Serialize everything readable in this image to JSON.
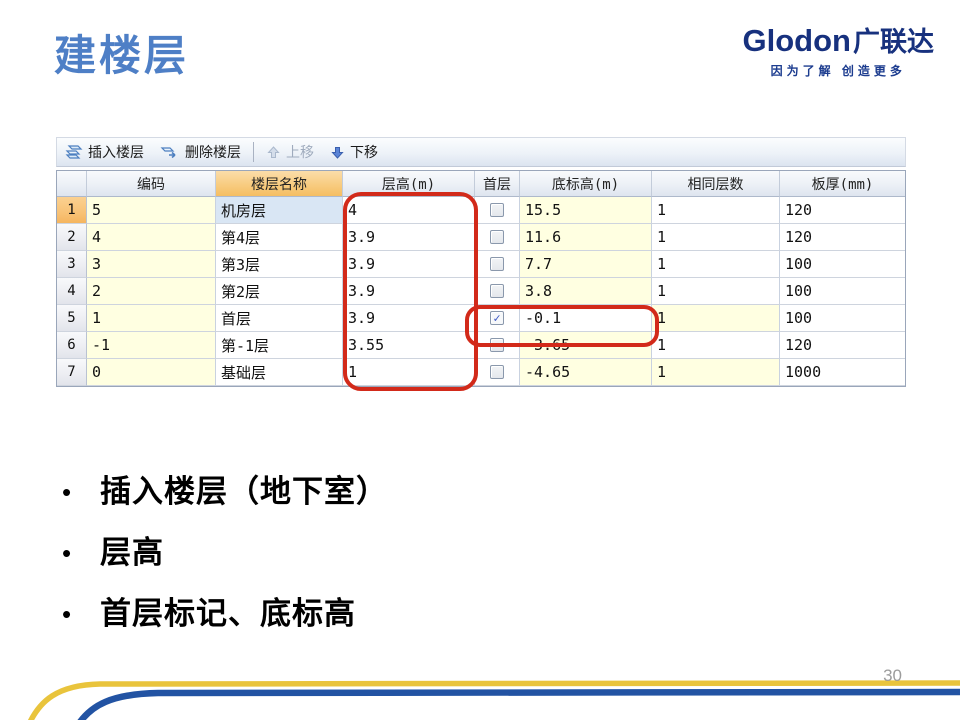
{
  "slide": {
    "title": "建楼层",
    "page_number": "30",
    "logo": {
      "brand_en": "Glodon",
      "brand_cn": "广联达",
      "tagline": "因为了解  创造更多"
    },
    "bullets": [
      "插入楼层（地下室）",
      "层高",
      "首层标记、底标高"
    ]
  },
  "toolbar": {
    "insert_label": "插入楼层",
    "delete_label": "删除楼层",
    "move_up_label": "上移",
    "move_down_label": "下移"
  },
  "table": {
    "columns": [
      "",
      "编码",
      "楼层名称",
      "层高(m)",
      "首层",
      "底标高(m)",
      "相同层数",
      "板厚(mm)"
    ],
    "rows": [
      {
        "num": "1",
        "code": "5",
        "name": "机房层",
        "height": "4",
        "first": false,
        "elevation": "15.5",
        "same": "1",
        "thickness": "120",
        "selected": true
      },
      {
        "num": "2",
        "code": "4",
        "name": "第4层",
        "height": "3.9",
        "first": false,
        "elevation": "11.6",
        "same": "1",
        "thickness": "120"
      },
      {
        "num": "3",
        "code": "3",
        "name": "第3层",
        "height": "3.9",
        "first": false,
        "elevation": "7.7",
        "same": "1",
        "thickness": "100"
      },
      {
        "num": "4",
        "code": "2",
        "name": "第2层",
        "height": "3.9",
        "first": false,
        "elevation": "3.8",
        "same": "1",
        "thickness": "100"
      },
      {
        "num": "5",
        "code": "1",
        "name": "首层",
        "height": "3.9",
        "first": true,
        "elevation": "-0.1",
        "same": "1",
        "thickness": "100",
        "elevation_bg": "white",
        "same_bg": "yellow"
      },
      {
        "num": "6",
        "code": "-1",
        "name": "第-1层",
        "height": "3.55",
        "first": false,
        "elevation": "-3.65",
        "same": "1",
        "thickness": "120"
      },
      {
        "num": "7",
        "code": "0",
        "name": "基础层",
        "height": "1",
        "first": false,
        "elevation": "-4.65",
        "same": "1",
        "thickness": "1000",
        "same_bg": "yellow"
      }
    ]
  },
  "icons": {
    "checkmark": "✓",
    "bullet": "•"
  },
  "colors": {
    "title_blue": "#4E7FC6",
    "logo_navy": "#17317E",
    "annotation_red": "#D22A1A",
    "footer_yellow": "#E9C43C",
    "footer_blue": "#2253A3",
    "cell_yellow": "#FFFFE1",
    "selected_cell_blue": "#D9E6F4",
    "selected_rowheader_orange": "#F8C276",
    "header_orange": "#F8CC80"
  }
}
